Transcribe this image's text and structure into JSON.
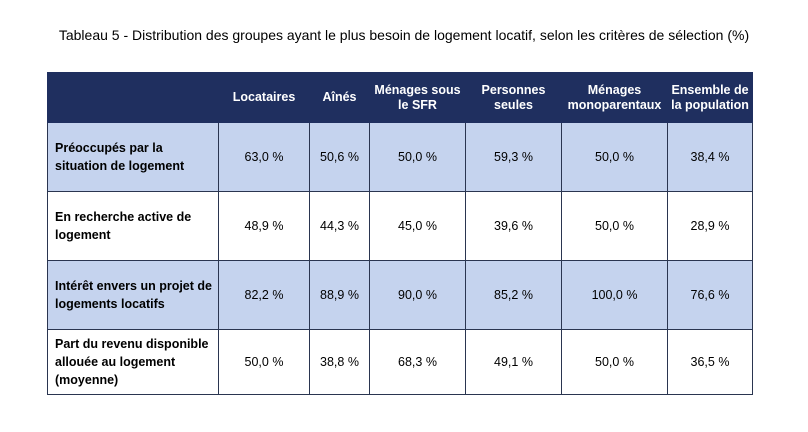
{
  "title": "Tableau 5 - Distribution des groupes ayant le plus besoin de logement locatif, selon les critères de sélection (%)",
  "columns": [
    "",
    "Locataires",
    "Aînés",
    "Ménages sous le SFR",
    "Personnes seules",
    "Ménages monoparentaux",
    "Ensemble de la population"
  ],
  "rows": [
    {
      "label": "Préoccupés par la situation de logement",
      "values": [
        "63,0 %",
        "50,6 %",
        "50,0 %",
        "59,3 %",
        "50,0 %",
        "38,4 %"
      ]
    },
    {
      "label": "En recherche active de logement",
      "values": [
        "48,9 %",
        "44,3 %",
        "45,0 %",
        "39,6 %",
        "50,0 %",
        "28,9 %"
      ]
    },
    {
      "label": "Intérêt envers un projet de logements locatifs",
      "values": [
        "82,2 %",
        "88,9 %",
        "90,0 %",
        "85,2 %",
        "100,0 %",
        "76,6 %"
      ]
    },
    {
      "label": "Part du revenu disponible allouée au logement (moyenne)",
      "values": [
        "50,0 %",
        "38,8 %",
        "68,3 %",
        "49,1 %",
        "50,0 %",
        "36,5 %"
      ]
    }
  ],
  "colors": {
    "header_bg": "#1f2f5f",
    "shaded_row_bg": "#c5d3ee"
  }
}
